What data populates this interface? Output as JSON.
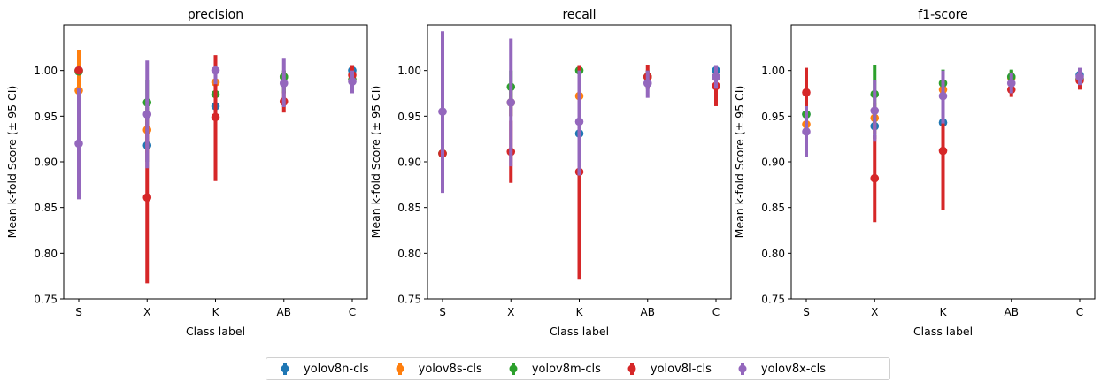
{
  "chart_data": {
    "type": "scatter",
    "categories": [
      "S",
      "X",
      "K",
      "AB",
      "C"
    ],
    "ylim": [
      0.75,
      1.05
    ],
    "yticks": [
      0.75,
      0.8,
      0.85,
      0.9,
      0.95,
      1.0
    ],
    "ytick_labels": [
      "0.75",
      "0.80",
      "0.85",
      "0.90",
      "0.95",
      "1.00"
    ],
    "xlabel": "Class label",
    "ylabel": "Mean k-fold Score (± 95 CI)",
    "colors": [
      "#1f77b4",
      "#ff7f0e",
      "#2ca02c",
      "#d62728",
      "#9467bd"
    ],
    "legend": [
      "yolov8n-cls",
      "yolov8s-cls",
      "yolov8m-cls",
      "yolov8l-cls",
      "yolov8x-cls"
    ],
    "legend_placement": "bottom-center",
    "panels": [
      {
        "title": "precision",
        "series": [
          {
            "name": "yolov8n-cls",
            "values": [
              1.0,
              0.918,
              0.961,
              0.993,
              1.0
            ],
            "lower": [
              1.0,
              0.9,
              0.93,
              0.975,
              1.0
            ],
            "upper": [
              1.0,
              0.94,
              0.99,
              1.0,
              1.0
            ]
          },
          {
            "name": "yolov8s-cls",
            "values": [
              0.978,
              0.935,
              0.987,
              0.993,
              0.99
            ],
            "lower": [
              0.935,
              0.91,
              0.96,
              0.975,
              0.98
            ],
            "upper": [
              1.022,
              0.96,
              1.0,
              1.0,
              1.0
            ]
          },
          {
            "name": "yolov8m-cls",
            "values": [
              0.999,
              0.965,
              0.974,
              0.993,
              0.99
            ],
            "lower": [
              0.999,
              0.94,
              0.94,
              0.975,
              0.98
            ],
            "upper": [
              0.999,
              0.99,
              1.01,
              1.0,
              1.0
            ]
          },
          {
            "name": "yolov8l-cls",
            "values": [
              1.0,
              0.861,
              0.949,
              0.966,
              0.995
            ],
            "lower": [
              1.0,
              0.767,
              0.879,
              0.954,
              0.985
            ],
            "upper": [
              1.0,
              0.955,
              1.017,
              0.977,
              1.005
            ]
          },
          {
            "name": "yolov8x-cls",
            "values": [
              0.92,
              0.952,
              1.0,
              0.986,
              0.988
            ],
            "lower": [
              0.859,
              0.893,
              0.985,
              0.96,
              0.975
            ],
            "upper": [
              0.981,
              1.011,
              1.0,
              1.013,
              1.0
            ]
          }
        ]
      },
      {
        "title": "recall",
        "series": [
          {
            "name": "yolov8n-cls",
            "values": [
              0.909,
              0.965,
              0.931,
              0.993,
              1.0
            ],
            "lower": [
              0.909,
              0.95,
              0.91,
              0.98,
              0.995
            ],
            "upper": [
              0.909,
              0.98,
              0.95,
              1.0,
              1.005
            ]
          },
          {
            "name": "yolov8s-cls",
            "values": [
              0.909,
              0.965,
              0.972,
              0.993,
              0.993
            ],
            "lower": [
              0.909,
              0.95,
              0.95,
              0.98,
              0.98
            ],
            "upper": [
              0.909,
              0.98,
              0.99,
              1.0,
              1.005
            ]
          },
          {
            "name": "yolov8m-cls",
            "values": [
              0.909,
              0.982,
              1.0,
              0.993,
              0.993
            ],
            "lower": [
              0.909,
              0.965,
              0.99,
              0.98,
              0.98
            ],
            "upper": [
              0.909,
              1.0,
              1.005,
              1.0,
              1.005
            ]
          },
          {
            "name": "yolov8l-cls",
            "values": [
              0.909,
              0.911,
              0.889,
              0.993,
              0.983
            ],
            "lower": [
              0.909,
              0.877,
              0.771,
              0.98,
              0.961
            ],
            "upper": [
              0.909,
              0.945,
              1.005,
              1.006,
              1.005
            ]
          },
          {
            "name": "yolov8x-cls",
            "values": [
              0.955,
              0.965,
              0.944,
              0.986,
              0.993
            ],
            "lower": [
              0.866,
              0.895,
              0.885,
              0.97,
              0.98
            ],
            "upper": [
              1.043,
              1.035,
              1.0,
              1.0,
              1.005
            ]
          }
        ]
      },
      {
        "title": "f1-score",
        "series": [
          {
            "name": "yolov8n-cls",
            "values": [
              0.952,
              0.939,
              0.943,
              0.993,
              0.995
            ],
            "lower": [
              0.945,
              0.925,
              0.93,
              0.985,
              0.99
            ],
            "upper": [
              0.96,
              0.955,
              0.96,
              1.0,
              1.0
            ]
          },
          {
            "name": "yolov8s-cls",
            "values": [
              0.941,
              0.948,
              0.979,
              0.992,
              0.991
            ],
            "lower": [
              0.93,
              0.93,
              0.96,
              0.985,
              0.985
            ],
            "upper": [
              0.955,
              0.965,
              0.995,
              1.0,
              1.0
            ]
          },
          {
            "name": "yolov8m-cls",
            "values": [
              0.952,
              0.974,
              0.986,
              0.993,
              0.991
            ],
            "lower": [
              0.945,
              0.942,
              0.97,
              0.985,
              0.985
            ],
            "upper": [
              0.96,
              1.006,
              1.001,
              1.001,
              1.0
            ]
          },
          {
            "name": "yolov8l-cls",
            "values": [
              0.976,
              0.882,
              0.912,
              0.979,
              0.989
            ],
            "lower": [
              0.95,
              0.834,
              0.847,
              0.971,
              0.979
            ],
            "upper": [
              1.003,
              0.929,
              0.977,
              0.987,
              0.999
            ]
          },
          {
            "name": "yolov8x-cls",
            "values": [
              0.933,
              0.956,
              0.972,
              0.986,
              0.993
            ],
            "lower": [
              0.905,
              0.922,
              0.942,
              0.975,
              0.984
            ],
            "upper": [
              0.961,
              0.99,
              1.0,
              0.997,
              1.003
            ]
          }
        ]
      }
    ]
  }
}
